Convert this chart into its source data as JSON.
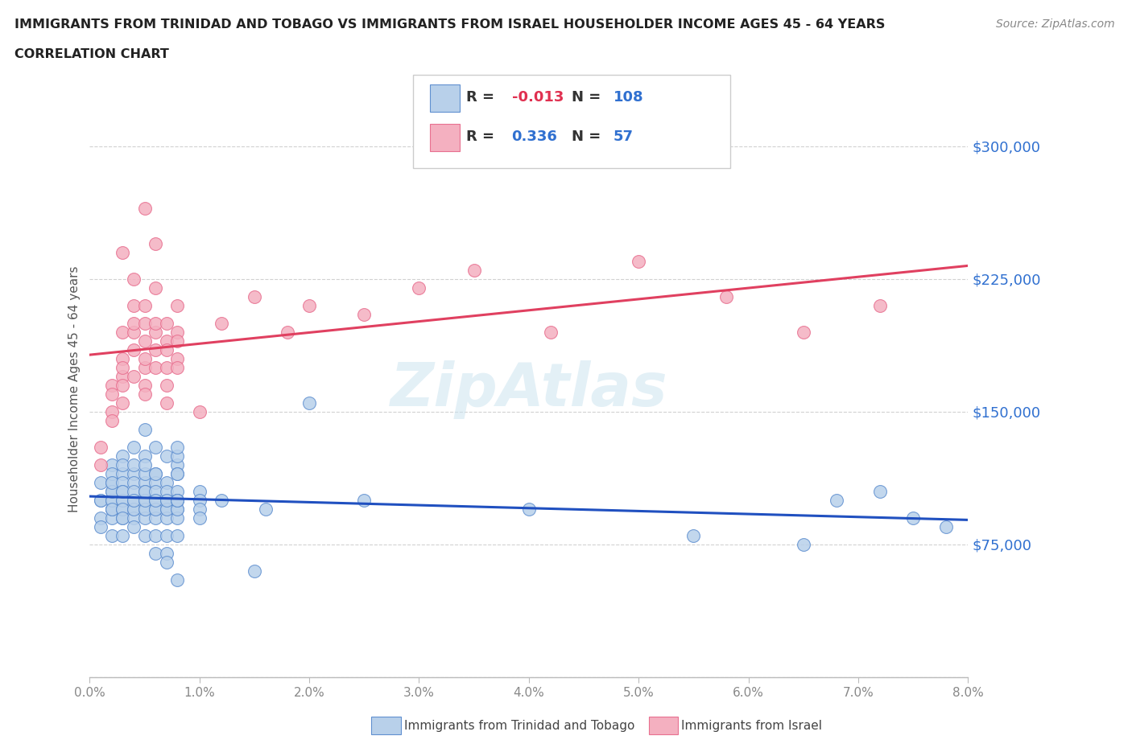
{
  "title_line1": "IMMIGRANTS FROM TRINIDAD AND TOBAGO VS IMMIGRANTS FROM ISRAEL HOUSEHOLDER INCOME AGES 45 - 64 YEARS",
  "title_line2": "CORRELATION CHART",
  "source": "Source: ZipAtlas.com",
  "ylabel": "Householder Income Ages 45 - 64 years",
  "xlim": [
    0.0,
    0.08
  ],
  "ylim": [
    0,
    325000
  ],
  "yticks": [
    0,
    75000,
    150000,
    225000,
    300000
  ],
  "ytick_labels": [
    "",
    "$75,000",
    "$150,000",
    "$225,000",
    "$300,000"
  ],
  "xtick_labels": [
    "0.0%",
    "1.0%",
    "2.0%",
    "3.0%",
    "4.0%",
    "5.0%",
    "6.0%",
    "7.0%",
    "8.0%"
  ],
  "xticks": [
    0.0,
    0.01,
    0.02,
    0.03,
    0.04,
    0.05,
    0.06,
    0.07,
    0.08
  ],
  "color_tt_face": "#b8d0ea",
  "color_israel_face": "#f4b0c0",
  "color_tt_edge": "#6090d0",
  "color_israel_edge": "#e87090",
  "color_tt_line": "#2050c0",
  "color_israel_line": "#e04060",
  "background": "#ffffff",
  "tt_x": [
    0.001,
    0.001,
    0.001,
    0.001,
    0.001,
    0.002,
    0.002,
    0.002,
    0.002,
    0.002,
    0.002,
    0.002,
    0.002,
    0.002,
    0.002,
    0.002,
    0.002,
    0.002,
    0.003,
    0.003,
    0.003,
    0.003,
    0.003,
    0.003,
    0.003,
    0.003,
    0.003,
    0.003,
    0.003,
    0.003,
    0.003,
    0.004,
    0.004,
    0.004,
    0.004,
    0.004,
    0.004,
    0.004,
    0.004,
    0.004,
    0.004,
    0.004,
    0.005,
    0.005,
    0.005,
    0.005,
    0.005,
    0.005,
    0.005,
    0.005,
    0.005,
    0.005,
    0.005,
    0.005,
    0.005,
    0.006,
    0.006,
    0.006,
    0.006,
    0.006,
    0.006,
    0.006,
    0.006,
    0.006,
    0.006,
    0.006,
    0.006,
    0.007,
    0.007,
    0.007,
    0.007,
    0.007,
    0.007,
    0.007,
    0.007,
    0.007,
    0.007,
    0.007,
    0.008,
    0.008,
    0.008,
    0.008,
    0.008,
    0.008,
    0.008,
    0.008,
    0.008,
    0.008,
    0.008,
    0.008,
    0.008,
    0.008,
    0.008,
    0.01,
    0.01,
    0.01,
    0.01,
    0.012,
    0.015,
    0.016,
    0.02,
    0.025,
    0.04,
    0.055,
    0.065,
    0.068,
    0.072,
    0.075,
    0.078
  ],
  "tt_y": [
    100000,
    110000,
    90000,
    100000,
    85000,
    120000,
    95000,
    110000,
    105000,
    100000,
    90000,
    115000,
    80000,
    95000,
    100000,
    95000,
    105000,
    110000,
    125000,
    115000,
    100000,
    95000,
    110000,
    90000,
    105000,
    120000,
    100000,
    95000,
    80000,
    90000,
    105000,
    130000,
    115000,
    95000,
    110000,
    100000,
    90000,
    85000,
    105000,
    95000,
    120000,
    100000,
    140000,
    125000,
    110000,
    95000,
    105000,
    100000,
    115000,
    90000,
    80000,
    95000,
    120000,
    100000,
    105000,
    130000,
    115000,
    95000,
    110000,
    100000,
    80000,
    90000,
    70000,
    95000,
    105000,
    100000,
    115000,
    125000,
    110000,
    95000,
    80000,
    90000,
    100000,
    105000,
    70000,
    65000,
    95000,
    100000,
    120000,
    115000,
    100000,
    95000,
    80000,
    90000,
    105000,
    100000,
    55000,
    95000,
    100000,
    115000,
    125000,
    130000,
    100000,
    105000,
    100000,
    95000,
    90000,
    100000,
    60000,
    95000,
    155000,
    100000,
    95000,
    80000,
    75000,
    100000,
    105000,
    90000,
    85000
  ],
  "israel_x": [
    0.001,
    0.001,
    0.002,
    0.002,
    0.002,
    0.002,
    0.003,
    0.003,
    0.003,
    0.003,
    0.003,
    0.003,
    0.003,
    0.004,
    0.004,
    0.004,
    0.004,
    0.004,
    0.004,
    0.005,
    0.005,
    0.005,
    0.005,
    0.005,
    0.005,
    0.005,
    0.005,
    0.006,
    0.006,
    0.006,
    0.006,
    0.006,
    0.006,
    0.007,
    0.007,
    0.007,
    0.007,
    0.007,
    0.007,
    0.008,
    0.008,
    0.008,
    0.008,
    0.008,
    0.01,
    0.012,
    0.015,
    0.018,
    0.02,
    0.025,
    0.03,
    0.035,
    0.042,
    0.05,
    0.058,
    0.065,
    0.072
  ],
  "israel_y": [
    120000,
    130000,
    150000,
    165000,
    145000,
    160000,
    170000,
    180000,
    155000,
    165000,
    175000,
    195000,
    240000,
    170000,
    185000,
    195000,
    210000,
    200000,
    225000,
    175000,
    190000,
    210000,
    165000,
    180000,
    200000,
    160000,
    265000,
    185000,
    195000,
    175000,
    200000,
    220000,
    245000,
    155000,
    175000,
    190000,
    200000,
    165000,
    185000,
    180000,
    195000,
    210000,
    175000,
    190000,
    150000,
    200000,
    215000,
    195000,
    210000,
    205000,
    220000,
    230000,
    195000,
    235000,
    215000,
    195000,
    210000
  ]
}
